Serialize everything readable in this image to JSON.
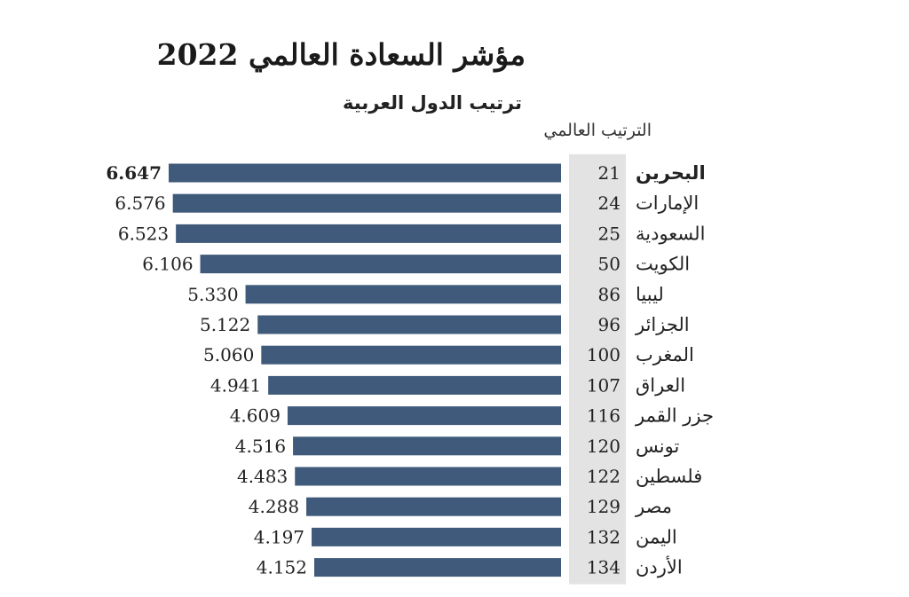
{
  "header": {
    "title": "مؤشر السعادة العالمي 2022",
    "subtitle": "ترتيب الدول العربية",
    "rank_column_label": "الترتيب العالمي"
  },
  "colors": {
    "bar": "#3f5a7a",
    "rank_band": "#e3e3e3"
  },
  "chart_data": {
    "type": "bar",
    "orientation": "horizontal",
    "title": "مؤشر السعادة العالمي 2022",
    "subtitle": "ترتيب الدول العربية",
    "categories": [
      "البحرين",
      "الإمارات",
      "السعودية",
      "الكويت",
      "ليبيا",
      "الجزائر",
      "المغرب",
      "العراق",
      "جزر القمر",
      "تونس",
      "فلسطين",
      "مصر",
      "اليمن",
      "الأردن"
    ],
    "values": [
      6.647,
      6.576,
      6.523,
      6.106,
      5.33,
      5.122,
      5.06,
      4.941,
      4.609,
      4.516,
      4.483,
      4.288,
      4.197,
      4.152
    ],
    "value_labels": [
      "6.647",
      "6.576",
      "6.523",
      "6.106",
      "5.330",
      "5.122",
      "5.060",
      "4.941",
      "4.609",
      "4.516",
      "4.483",
      "4.288",
      "4.197",
      "4.152"
    ],
    "global_rank": [
      21,
      24,
      25,
      50,
      86,
      96,
      100,
      107,
      116,
      120,
      122,
      129,
      132,
      134
    ],
    "bars_grow": "right-to-left",
    "highlight_first": true,
    "grid": false,
    "legend": "none"
  }
}
